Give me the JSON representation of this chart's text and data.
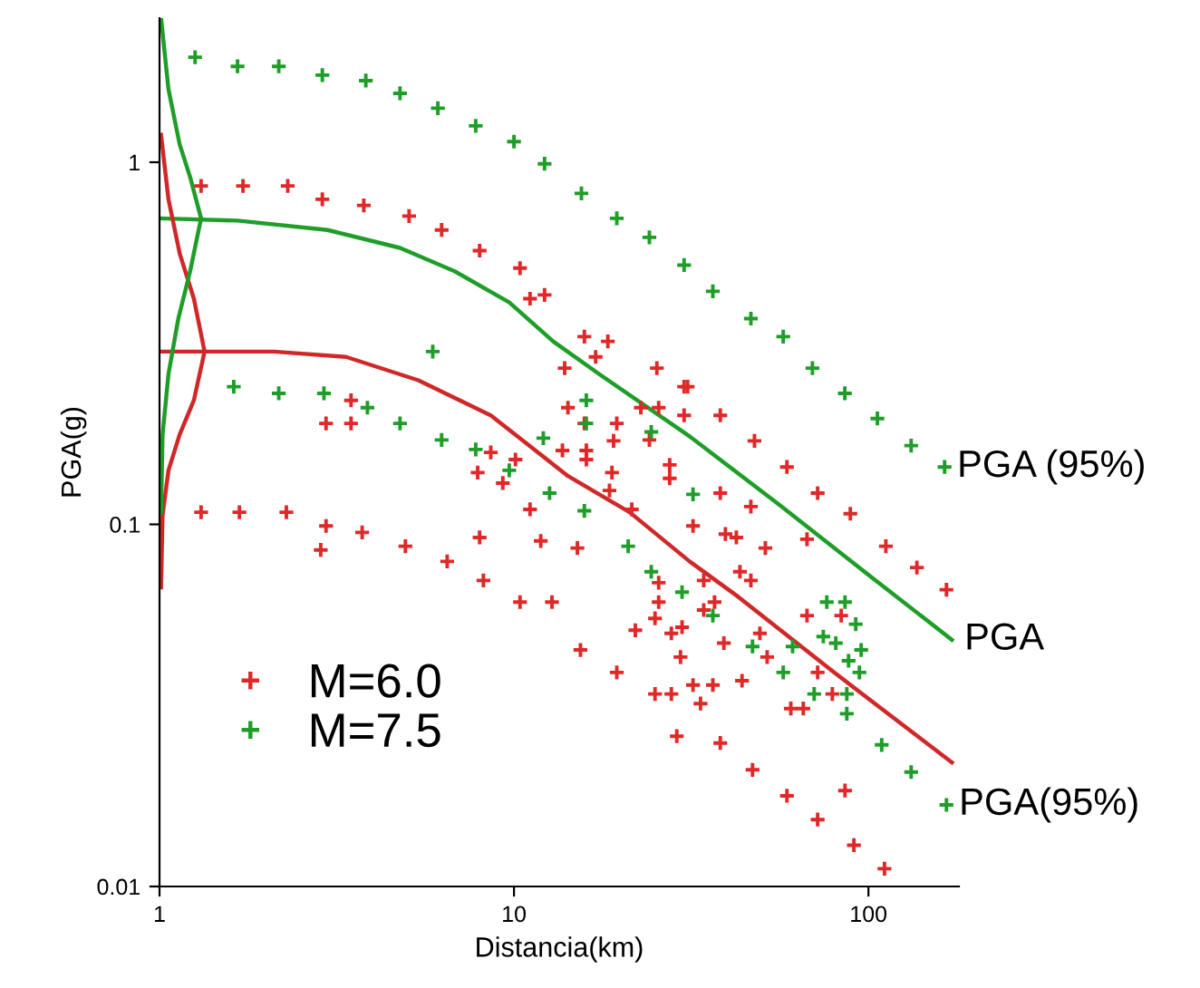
{
  "chart_data": {
    "type": "scatter",
    "xlabel": "Distancia(km)",
    "ylabel": "PGA(g)",
    "log": "xy",
    "xlim": [
      1,
      180
    ],
    "ylim": [
      0.01,
      2.5
    ],
    "xticks": [
      1,
      10,
      100
    ],
    "yticks": [
      0.01,
      0.1,
      1
    ],
    "grid": false,
    "legend": "bottom left",
    "marker": "cross",
    "series": [
      {
        "name": "M=6.0",
        "color": "#e02828",
        "x": [
          1.31,
          1.72,
          2.3,
          2.88,
          3.77,
          5.06,
          6.25,
          8.0,
          10.4,
          11.1,
          12.2,
          18.4,
          25.3,
          30.9,
          38.2,
          47.7,
          58.9,
          71.9,
          88.9,
          112,
          137,
          166,
          1.31,
          1.68,
          2.28,
          2.95,
          3.73,
          2.85,
          4.94,
          6.48,
          8.0,
          8.2,
          10.4,
          12.8,
          15.4,
          19.5,
          25.0,
          27.8,
          28.8,
          47.1,
          58.9,
          71.9,
          91.0,
          111,
          85.9,
          38.2,
          15.8,
          17.0,
          13.9,
          14.2,
          15.8,
          19.5,
          19.1,
          22.8,
          25.6,
          30.2,
          30.2,
          13.7,
          16.0,
          8.6,
          10.1,
          2.95,
          3.47,
          3.47,
          7.9,
          9.3,
          16.0,
          18.9,
          18.6,
          21.5,
          27.5,
          27.5,
          24.1,
          38.2,
          46.6,
          32.0,
          39.5,
          42.4,
          51.2,
          67.1,
          43.4,
          46.6,
          34.3,
          25.6,
          25.6,
          25.0,
          29.8,
          27.8,
          34.3,
          36.8,
          39.1,
          22.0,
          67.1,
          83.8,
          49.4,
          51.8,
          60.4,
          65.5,
          71.9,
          79.1,
          29.5,
          32.0,
          33.6,
          36.4,
          44.0,
          11.1,
          11.9,
          15.1
        ],
        "values": [
          0.86,
          0.86,
          0.86,
          0.79,
          0.76,
          0.71,
          0.65,
          0.57,
          0.51,
          0.42,
          0.43,
          0.32,
          0.27,
          0.24,
          0.2,
          0.17,
          0.144,
          0.122,
          0.107,
          0.087,
          0.076,
          0.066,
          0.108,
          0.108,
          0.108,
          0.099,
          0.095,
          0.085,
          0.087,
          0.079,
          0.092,
          0.07,
          0.061,
          0.061,
          0.045,
          0.039,
          0.034,
          0.034,
          0.026,
          0.021,
          0.0178,
          0.0153,
          0.013,
          0.0112,
          0.0184,
          0.0249,
          0.33,
          0.29,
          0.27,
          0.21,
          0.19,
          0.19,
          0.17,
          0.21,
          0.21,
          0.24,
          0.2,
          0.16,
          0.16,
          0.158,
          0.151,
          0.19,
          0.22,
          0.19,
          0.139,
          0.13,
          0.151,
          0.139,
          0.124,
          0.11,
          0.146,
          0.134,
          0.171,
          0.122,
          0.112,
          0.099,
          0.094,
          0.092,
          0.086,
          0.091,
          0.074,
          0.07,
          0.07,
          0.069,
          0.061,
          0.055,
          0.052,
          0.05,
          0.058,
          0.061,
          0.047,
          0.051,
          0.056,
          0.056,
          0.05,
          0.043,
          0.031,
          0.031,
          0.039,
          0.034,
          0.043,
          0.036,
          0.032,
          0.036,
          0.037,
          0.11,
          0.09,
          0.086
        ]
      },
      {
        "name": "M=7.5",
        "color": "#1e9e28",
        "x": [
          1.26,
          1.66,
          2.17,
          2.88,
          3.82,
          4.77,
          6.1,
          7.8,
          10,
          12.2,
          15.5,
          19.5,
          24.1,
          30.2,
          36.4,
          46.6,
          57.5,
          69.5,
          85.8,
          106,
          132,
          164,
          1.62,
          2.17,
          2.91,
          3.86,
          4.77,
          6.25,
          7.8,
          5.9,
          9.7,
          12.1,
          12.6,
          15.8,
          16.0,
          16.0,
          21.0,
          24.4,
          29.8,
          24.4,
          32.0,
          36.4,
          76.3,
          85.9,
          92.1,
          74.6,
          80.9,
          61.1,
          47.1,
          57.5,
          70.3,
          87.9,
          94.3,
          95.4,
          86.9,
          86.9,
          109,
          132,
          166
        ],
        "values": [
          1.95,
          1.84,
          1.84,
          1.74,
          1.68,
          1.55,
          1.41,
          1.26,
          1.14,
          0.99,
          0.82,
          0.7,
          0.62,
          0.52,
          0.44,
          0.37,
          0.33,
          0.27,
          0.23,
          0.196,
          0.165,
          0.144,
          0.24,
          0.23,
          0.23,
          0.21,
          0.19,
          0.171,
          0.161,
          0.3,
          0.141,
          0.173,
          0.122,
          0.109,
          0.22,
          0.19,
          0.087,
          0.074,
          0.065,
          0.18,
          0.121,
          0.056,
          0.061,
          0.061,
          0.053,
          0.049,
          0.047,
          0.046,
          0.046,
          0.039,
          0.034,
          0.042,
          0.039,
          0.045,
          0.034,
          0.03,
          0.0246,
          0.0207,
          0.0168
        ]
      },
      {
        "type": "line",
        "color": "#1e9e28",
        "marker": "none",
        "x": [
          1.0,
          1.66,
          2.98,
          4.77,
          6.8,
          9.7,
          12.9,
          17.4,
          31.3,
          56.2,
          101,
          172
        ],
        "values": [
          0.7,
          0.69,
          0.65,
          0.58,
          0.5,
          0.41,
          0.32,
          0.26,
          0.175,
          0.113,
          0.072,
          0.048
        ]
      },
      {
        "type": "line",
        "color": "#d02828",
        "marker": "none",
        "x": [
          1.0,
          2.1,
          3.36,
          5.37,
          8.6,
          14.2,
          21.2,
          31.3,
          43.0,
          80.0,
          172
        ],
        "values": [
          0.3,
          0.3,
          0.29,
          0.25,
          0.2,
          0.136,
          0.108,
          0.079,
          0.063,
          0.039,
          0.022
        ]
      },
      {
        "type": "line",
        "color": "#d02828",
        "marker": "none",
        "x": [
          1.01,
          1.06,
          1.14,
          1.25,
          1.34,
          1.25,
          1.14,
          1.06,
          1.02,
          1.01
        ],
        "values": [
          1.19,
          0.79,
          0.56,
          0.42,
          0.3,
          0.22,
          0.177,
          0.141,
          0.106,
          0.067
        ]
      },
      {
        "type": "line",
        "color": "#1e9e28",
        "marker": "none",
        "x": [
          1.01,
          1.06,
          1.14,
          1.22,
          1.31,
          1.22,
          1.13,
          1.06,
          1.02,
          1.01
        ],
        "values": [
          2.5,
          1.59,
          1.12,
          0.91,
          0.7,
          0.5,
          0.37,
          0.26,
          0.177,
          0.108
        ]
      }
    ],
    "annotations": [
      {
        "text": "PGA (95%)",
        "x": 164,
        "y": 0.144
      },
      {
        "text": "PGA",
        "x": 172,
        "y": 0.048
      },
      {
        "text": "PGA(95%)",
        "x": 166,
        "y": 0.0168
      }
    ]
  }
}
